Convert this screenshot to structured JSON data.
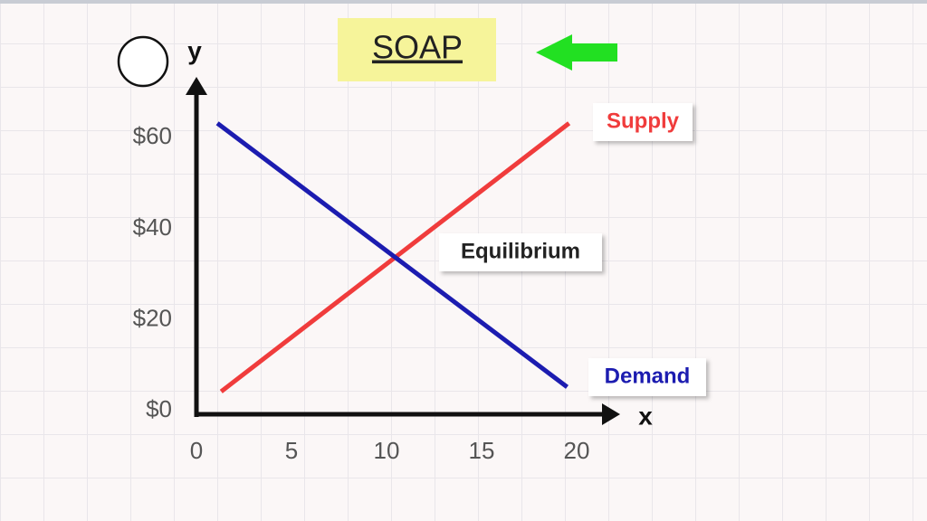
{
  "chart_data": {
    "type": "line",
    "title": "SOAP",
    "x_label": "x",
    "y_label": "y",
    "annotation": "Equilibrium",
    "series": [
      {
        "name": "Supply",
        "color": "#f03c3c",
        "x": [
          1.3,
          19.6
        ],
        "values": [
          5,
          64
        ]
      },
      {
        "name": "Demand",
        "color": "#1c1cb0",
        "x": [
          1.1,
          19.5
        ],
        "values": [
          64,
          6
        ]
      }
    ],
    "xlim": [
      0,
      22
    ],
    "ylim": [
      0,
      73
    ],
    "xticks": [
      0,
      5,
      10,
      15,
      20
    ],
    "yticks": [
      {
        "value": 0,
        "label": "$0"
      },
      {
        "value": 20,
        "label": "$20"
      },
      {
        "value": 40,
        "label": "$40"
      },
      {
        "value": 60,
        "label": "$60"
      }
    ]
  }
}
